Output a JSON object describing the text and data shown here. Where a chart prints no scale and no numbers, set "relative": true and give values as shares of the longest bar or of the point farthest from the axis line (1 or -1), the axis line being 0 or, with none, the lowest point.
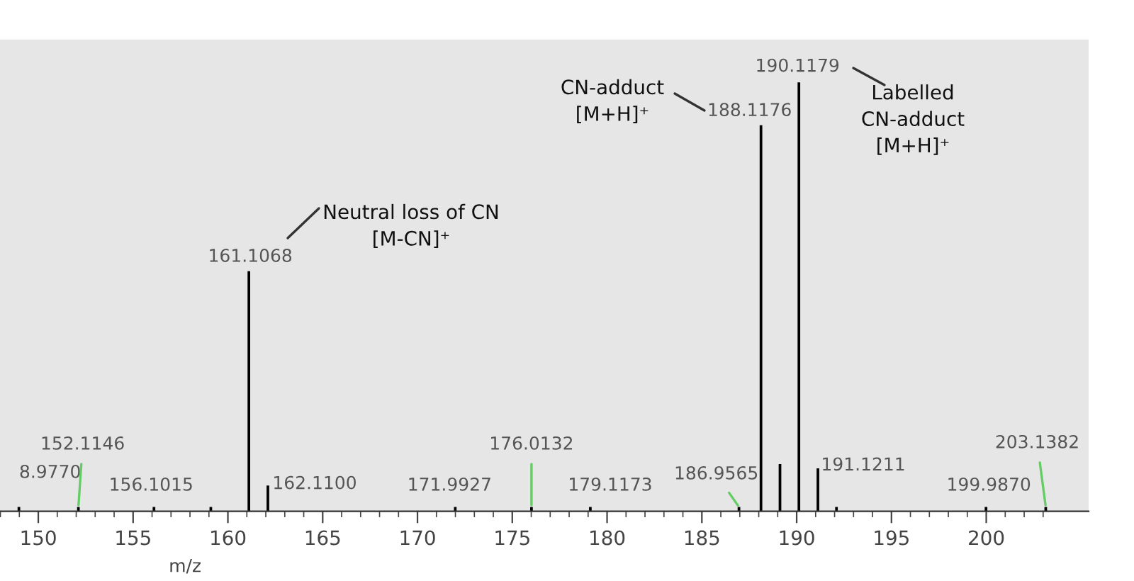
{
  "chart_data": {
    "type": "bar",
    "relative": true,
    "xlabel": "m/z",
    "color": "#000000",
    "grid": false,
    "legend": false,
    "x": [
      148.977,
      152.1146,
      156.1015,
      159.1,
      161.1068,
      162.11,
      171.9927,
      176.0132,
      179.1173,
      186.9565,
      188.1176,
      189.12,
      190.1179,
      191.1211,
      192.1,
      199.987,
      203.1382
    ],
    "values": [
      0.01,
      0.01,
      0.01,
      0.01,
      0.56,
      0.06,
      0.01,
      0.01,
      0.01,
      0.01,
      0.9,
      0.11,
      1,
      0.1,
      0.01,
      0.01,
      0.01
    ],
    "xlim": [
      147.98,
      205.4
    ],
    "xticks": [
      {
        "value": 148,
        "label": null
      },
      {
        "value": 149,
        "label": null
      },
      150,
      {
        "value": 151,
        "label": null
      },
      {
        "value": 152,
        "label": null
      },
      {
        "value": 153,
        "label": null
      },
      {
        "value": 154,
        "label": null
      },
      155,
      {
        "value": 156,
        "label": null
      },
      {
        "value": 157,
        "label": null
      },
      {
        "value": 158,
        "label": null
      },
      {
        "value": 159,
        "label": null
      },
      160,
      {
        "value": 161,
        "label": null
      },
      {
        "value": 162,
        "label": null
      },
      {
        "value": 163,
        "label": null
      },
      {
        "value": 164,
        "label": null
      },
      165,
      {
        "value": 166,
        "label": null
      },
      {
        "value": 167,
        "label": null
      },
      {
        "value": 168,
        "label": null
      },
      {
        "value": 169,
        "label": null
      },
      170,
      {
        "value": 171,
        "label": null
      },
      {
        "value": 172,
        "label": null
      },
      {
        "value": 173,
        "label": null
      },
      {
        "value": 174,
        "label": null
      },
      175,
      {
        "value": 176,
        "label": null
      },
      {
        "value": 177,
        "label": null
      },
      {
        "value": 178,
        "label": null
      },
      {
        "value": 179,
        "label": null
      },
      180,
      {
        "value": 181,
        "label": null
      },
      {
        "value": 182,
        "label": null
      },
      {
        "value": 183,
        "label": null
      },
      {
        "value": 184,
        "label": null
      },
      185,
      {
        "value": 186,
        "label": null
      },
      {
        "value": 187,
        "label": null
      },
      {
        "value": 188,
        "label": null
      },
      {
        "value": 189,
        "label": null
      },
      190,
      {
        "value": 191,
        "label": null
      },
      {
        "value": 192,
        "label": null
      },
      {
        "value": 193,
        "label": null
      },
      {
        "value": 194,
        "label": null
      },
      195,
      {
        "value": 196,
        "label": null
      },
      {
        "value": 197,
        "label": null
      },
      {
        "value": 198,
        "label": null
      },
      {
        "value": 199,
        "label": null
      },
      200,
      {
        "value": 201,
        "label": null
      },
      {
        "value": 202,
        "label": null
      },
      {
        "value": 203,
        "label": null
      }
    ],
    "annotations": [
      {
        "text": "8.9770",
        "x": 148.977,
        "y": 0.01
      },
      {
        "text": "152.1146",
        "x": 152.1146,
        "y": 0.01
      },
      {
        "text": "156.1015",
        "x": 156.1015,
        "y": 0.01
      },
      {
        "text": "161.1068",
        "x": 161.1068,
        "y": 0.56
      },
      {
        "text": "162.1100",
        "x": 162.11,
        "y": 0.06
      },
      {
        "text": "171.9927",
        "x": 171.9927,
        "y": 0.01
      },
      {
        "text": "176.0132",
        "x": 176.0132,
        "y": 0.01
      },
      {
        "text": "179.1173",
        "x": 179.1173,
        "y": 0.01
      },
      {
        "text": "186.9565",
        "x": 186.9565,
        "y": 0.01
      },
      {
        "text": "188.1176",
        "x": 188.1176,
        "y": 0.9
      },
      {
        "text": "190.1179",
        "x": 190.1179,
        "y": 1
      },
      {
        "text": "191.1211",
        "x": 191.1211,
        "y": 0.1
      },
      {
        "text": "199.9870",
        "x": 199.987,
        "y": 0.01
      },
      {
        "text": "203.1382",
        "x": 203.1382,
        "y": 0.01
      },
      "Neutral loss of CN\n[M-CN]⁺",
      "CN-adduct\n[M+H]⁺",
      "Labelled\nCN-adduct\n[M+H]⁺"
    ]
  }
}
